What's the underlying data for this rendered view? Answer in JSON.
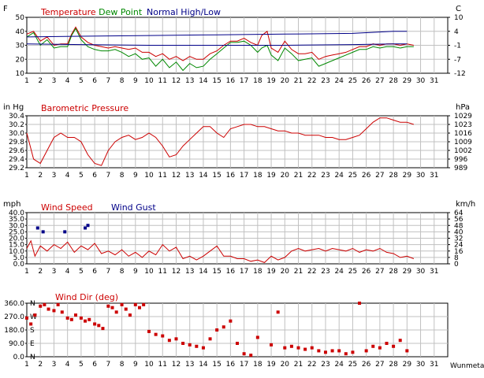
{
  "days": [
    1,
    2,
    3,
    4,
    5,
    6,
    7,
    8,
    9,
    10,
    11,
    12,
    13,
    14,
    15,
    16,
    17,
    18,
    19,
    20,
    21,
    22,
    23,
    24,
    25,
    26,
    27,
    28,
    29,
    30,
    31
  ],
  "panels": {
    "temperature": {
      "left_unit": "F",
      "right_unit": "C",
      "title_parts": [
        {
          "text": "Temperature",
          "color": "#cc0000"
        },
        {
          "text": "Dew Point",
          "color": "#008800"
        },
        {
          "text": "Normal High/Low",
          "color": "#000088"
        }
      ],
      "left_ticks": [
        "50",
        "40",
        "30",
        "20",
        "10"
      ],
      "right_ticks": [
        "10",
        "4",
        "-1",
        "-7",
        "-12"
      ]
    },
    "pressure": {
      "left_unit": "in Hg",
      "right_unit": "hPa",
      "title": "Barometric Pressure",
      "left_ticks": [
        "30.4",
        "30.2",
        "30.0",
        "29.8",
        "29.6",
        "29.4",
        "29.2"
      ],
      "right_ticks": [
        "1029",
        "1023",
        "1016",
        "1009",
        "1002",
        "996",
        "989"
      ]
    },
    "wind": {
      "left_unit": "mph",
      "right_unit": "km/h",
      "title_parts": [
        {
          "text": "Wind Speed",
          "color": "#cc0000"
        },
        {
          "text": "Wind Gust",
          "color": "#000088"
        }
      ],
      "left_ticks": [
        "40.0",
        "35.0",
        "30.0",
        "25.0",
        "20.0",
        "15.0",
        "10.0",
        "5.0",
        "0.0"
      ],
      "right_ticks": [
        "64",
        "56",
        "48",
        "40",
        "32",
        "24",
        "16",
        "8",
        "0"
      ]
    },
    "winddir": {
      "title": "Wind Dir (deg)",
      "left_ticks": [
        "360.0",
        "270.0",
        "180.0",
        "90.0",
        "0.0"
      ],
      "compass_labels": [
        "N",
        "W",
        "S",
        "E",
        "N"
      ],
      "credit": "Wunmetar"
    }
  },
  "chart_data": [
    {
      "type": "line",
      "title": "Temperature  Dew Point  Normal High/Low",
      "xlabel": "",
      "ylabel": "F",
      "xlim": [
        1,
        32
      ],
      "ylim": [
        10,
        50
      ],
      "series": [
        {
          "name": "Temperature",
          "color": "#cc0000",
          "x": [
            1,
            1.5,
            2,
            2.5,
            3,
            3.5,
            4,
            4.3,
            4.6,
            5,
            5.5,
            6,
            6.5,
            7,
            7.5,
            8,
            8.5,
            9,
            9.5,
            10,
            10.5,
            11,
            11.5,
            12,
            12.5,
            13,
            13.5,
            14,
            14.5,
            15,
            15.5,
            16,
            16.5,
            17,
            17.5,
            18,
            18.3,
            18.7,
            19,
            19.5,
            20,
            20.5,
            21,
            21.5,
            22,
            22.5,
            23,
            23.5,
            24,
            24.5,
            25,
            25.5,
            26,
            26.5,
            27,
            27.5,
            28,
            28.5,
            29,
            29.5
          ],
          "y": [
            38,
            40,
            33,
            36,
            30,
            31,
            31,
            38,
            43,
            36,
            32,
            30,
            29,
            28,
            29,
            28,
            27,
            28,
            25,
            25,
            22,
            24,
            20,
            22,
            19,
            22,
            20,
            20,
            24,
            26,
            30,
            33,
            33,
            35,
            32,
            30,
            37,
            40,
            28,
            25,
            33,
            27,
            24,
            24,
            25,
            20,
            22,
            23,
            24,
            25,
            27,
            29,
            29,
            31,
            30,
            31,
            31,
            30,
            31,
            30
          ]
        },
        {
          "name": "Dew Point",
          "color": "#008800",
          "x": [
            1,
            1.5,
            2,
            2.5,
            3,
            3.5,
            4,
            4.3,
            4.6,
            5,
            5.5,
            6,
            6.5,
            7,
            7.5,
            8,
            8.5,
            9,
            9.5,
            10,
            10.5,
            11,
            11.5,
            12,
            12.5,
            13,
            13.5,
            14,
            14.5,
            15,
            15.5,
            16,
            16.5,
            17,
            17.5,
            18,
            18.3,
            18.7,
            19,
            19.5,
            20,
            20.5,
            21,
            21.5,
            22,
            22.5,
            23,
            23.5,
            24,
            24.5,
            25,
            25.5,
            26,
            26.5,
            27,
            27.5,
            28,
            28.5,
            29,
            29.5
          ],
          "y": [
            36,
            39,
            30,
            34,
            28,
            29,
            29,
            37,
            42,
            34,
            29,
            27,
            26,
            26,
            27,
            25,
            22,
            24,
            20,
            21,
            15,
            20,
            14,
            18,
            12,
            17,
            14,
            15,
            20,
            24,
            28,
            32,
            32,
            33,
            30,
            25,
            28,
            30,
            23,
            19,
            28,
            24,
            19,
            20,
            21,
            15,
            17,
            19,
            21,
            23,
            25,
            27,
            27,
            29,
            28,
            29,
            29,
            28,
            29,
            29
          ]
        },
        {
          "name": "Normal High/Low",
          "color": "#000088",
          "x": [
            1,
            5,
            10,
            15,
            20,
            25,
            28,
            29
          ],
          "y": [
            36,
            36.5,
            37,
            37.5,
            38,
            38.5,
            40,
            40
          ]
        },
        {
          "name": "Normal High/Low",
          "color": "#000088",
          "x": [
            1,
            5,
            10,
            15,
            20,
            25,
            28,
            29
          ],
          "y": [
            31,
            30.5,
            30,
            30,
            30,
            30.5,
            31,
            31
          ]
        }
      ]
    },
    {
      "type": "line",
      "title": "Barometric Pressure",
      "xlabel": "",
      "ylabel": "in Hg",
      "xlim": [
        1,
        32
      ],
      "ylim": [
        29.2,
        30.4
      ],
      "series": [
        {
          "name": "Barometric Pressure",
          "color": "#cc0000",
          "x": [
            1,
            1.5,
            2,
            2.5,
            3,
            3.5,
            4,
            4.5,
            5,
            5.5,
            6,
            6.5,
            7,
            7.5,
            8,
            8.5,
            9,
            9.5,
            10,
            10.5,
            11,
            11.5,
            12,
            12.5,
            13,
            13.5,
            14,
            14.5,
            15,
            15.5,
            16,
            16.5,
            17,
            17.5,
            18,
            18.5,
            19,
            19.5,
            20,
            20.5,
            21,
            21.5,
            22,
            22.5,
            23,
            23.5,
            24,
            24.5,
            25,
            25.5,
            26,
            26.5,
            27,
            27.5,
            28,
            28.5,
            29,
            29.5
          ],
          "y": [
            30.0,
            29.4,
            29.3,
            29.6,
            29.9,
            30.0,
            29.9,
            29.9,
            29.8,
            29.5,
            29.3,
            29.25,
            29.6,
            29.8,
            29.9,
            29.95,
            29.85,
            29.9,
            30.0,
            29.9,
            29.7,
            29.45,
            29.5,
            29.7,
            29.85,
            30.0,
            30.15,
            30.15,
            30.0,
            29.9,
            30.1,
            30.15,
            30.2,
            30.2,
            30.15,
            30.15,
            30.1,
            30.05,
            30.05,
            30.0,
            30.0,
            29.95,
            29.95,
            29.95,
            29.9,
            29.9,
            29.85,
            29.85,
            29.9,
            29.95,
            30.1,
            30.25,
            30.35,
            30.35,
            30.3,
            30.25,
            30.25,
            30.2
          ]
        }
      ]
    },
    {
      "type": "scatter",
      "title": "Wind Speed  Wind Gust",
      "xlabel": "",
      "ylabel": "mph",
      "xlim": [
        1,
        32
      ],
      "ylim": [
        0,
        40
      ],
      "series": [
        {
          "name": "Wind Speed",
          "color": "#cc0000",
          "x": [
            1,
            1.3,
            1.6,
            2,
            2.5,
            3,
            3.5,
            4,
            4.5,
            5,
            5.5,
            6,
            6.5,
            7,
            7.5,
            8,
            8.5,
            9,
            9.5,
            10,
            10.5,
            11,
            11.5,
            12,
            12.5,
            13,
            13.5,
            14,
            14.5,
            15,
            15.5,
            16,
            16.5,
            17,
            17.5,
            18,
            18.5,
            19,
            19.5,
            20,
            20.5,
            21,
            21.5,
            22,
            22.5,
            23,
            23.5,
            24,
            24.5,
            25,
            25.5,
            26,
            26.5,
            27,
            27.5,
            28,
            28.5,
            29,
            29.5
          ],
          "y": [
            12,
            18,
            6,
            14,
            10,
            15,
            12,
            17,
            9,
            14,
            11,
            16,
            8,
            10,
            7,
            11,
            6,
            9,
            5,
            10,
            7,
            15,
            10,
            13,
            4,
            6,
            3,
            6,
            10,
            14,
            6,
            6,
            4,
            4,
            2,
            3,
            1,
            6,
            3,
            5,
            10,
            12,
            10,
            11,
            12,
            10,
            12,
            11,
            10,
            12,
            9,
            11,
            10,
            12,
            9,
            8,
            5,
            6,
            4
          ]
        },
        {
          "name": "Wind Gust",
          "color": "#000088",
          "x": [
            1.8,
            2.2,
            3.8,
            5.3,
            5.5
          ],
          "y": [
            28,
            25,
            25,
            28,
            30
          ]
        }
      ]
    },
    {
      "type": "scatter",
      "title": "Wind Dir (deg)",
      "xlabel": "",
      "ylabel": "",
      "xlim": [
        1,
        32
      ],
      "ylim": [
        0,
        360
      ],
      "series": [
        {
          "name": "Wind Dir (deg)",
          "color": "#cc0000",
          "x": [
            1,
            1.3,
            1.6,
            2,
            2.3,
            2.6,
            3,
            3.3,
            3.6,
            4,
            4.3,
            4.6,
            5,
            5.3,
            5.6,
            6,
            6.3,
            6.6,
            7,
            7.3,
            7.6,
            8,
            8.3,
            8.6,
            9,
            9.3,
            9.6,
            10,
            10.5,
            11,
            11.5,
            12,
            12.5,
            13,
            13.5,
            14,
            14.5,
            15,
            15.5,
            16,
            16.5,
            17,
            17.5,
            18,
            19,
            19.5,
            20,
            20.5,
            21,
            21.5,
            22,
            22.5,
            23,
            23.5,
            24,
            24.5,
            25,
            25.5,
            26,
            26.5,
            27,
            27.5,
            28,
            28.5,
            29
          ],
          "y": [
            260,
            220,
            280,
            340,
            350,
            320,
            310,
            350,
            300,
            260,
            250,
            280,
            260,
            240,
            250,
            220,
            210,
            190,
            340,
            330,
            300,
            350,
            320,
            280,
            350,
            330,
            350,
            170,
            150,
            140,
            110,
            120,
            90,
            80,
            70,
            60,
            120,
            180,
            200,
            240,
            90,
            20,
            10,
            130,
            80,
            300,
            60,
            70,
            60,
            50,
            60,
            40,
            30,
            40,
            40,
            20,
            30,
            360,
            40,
            70,
            60,
            90,
            70,
            110,
            40
          ]
        }
      ]
    }
  ]
}
